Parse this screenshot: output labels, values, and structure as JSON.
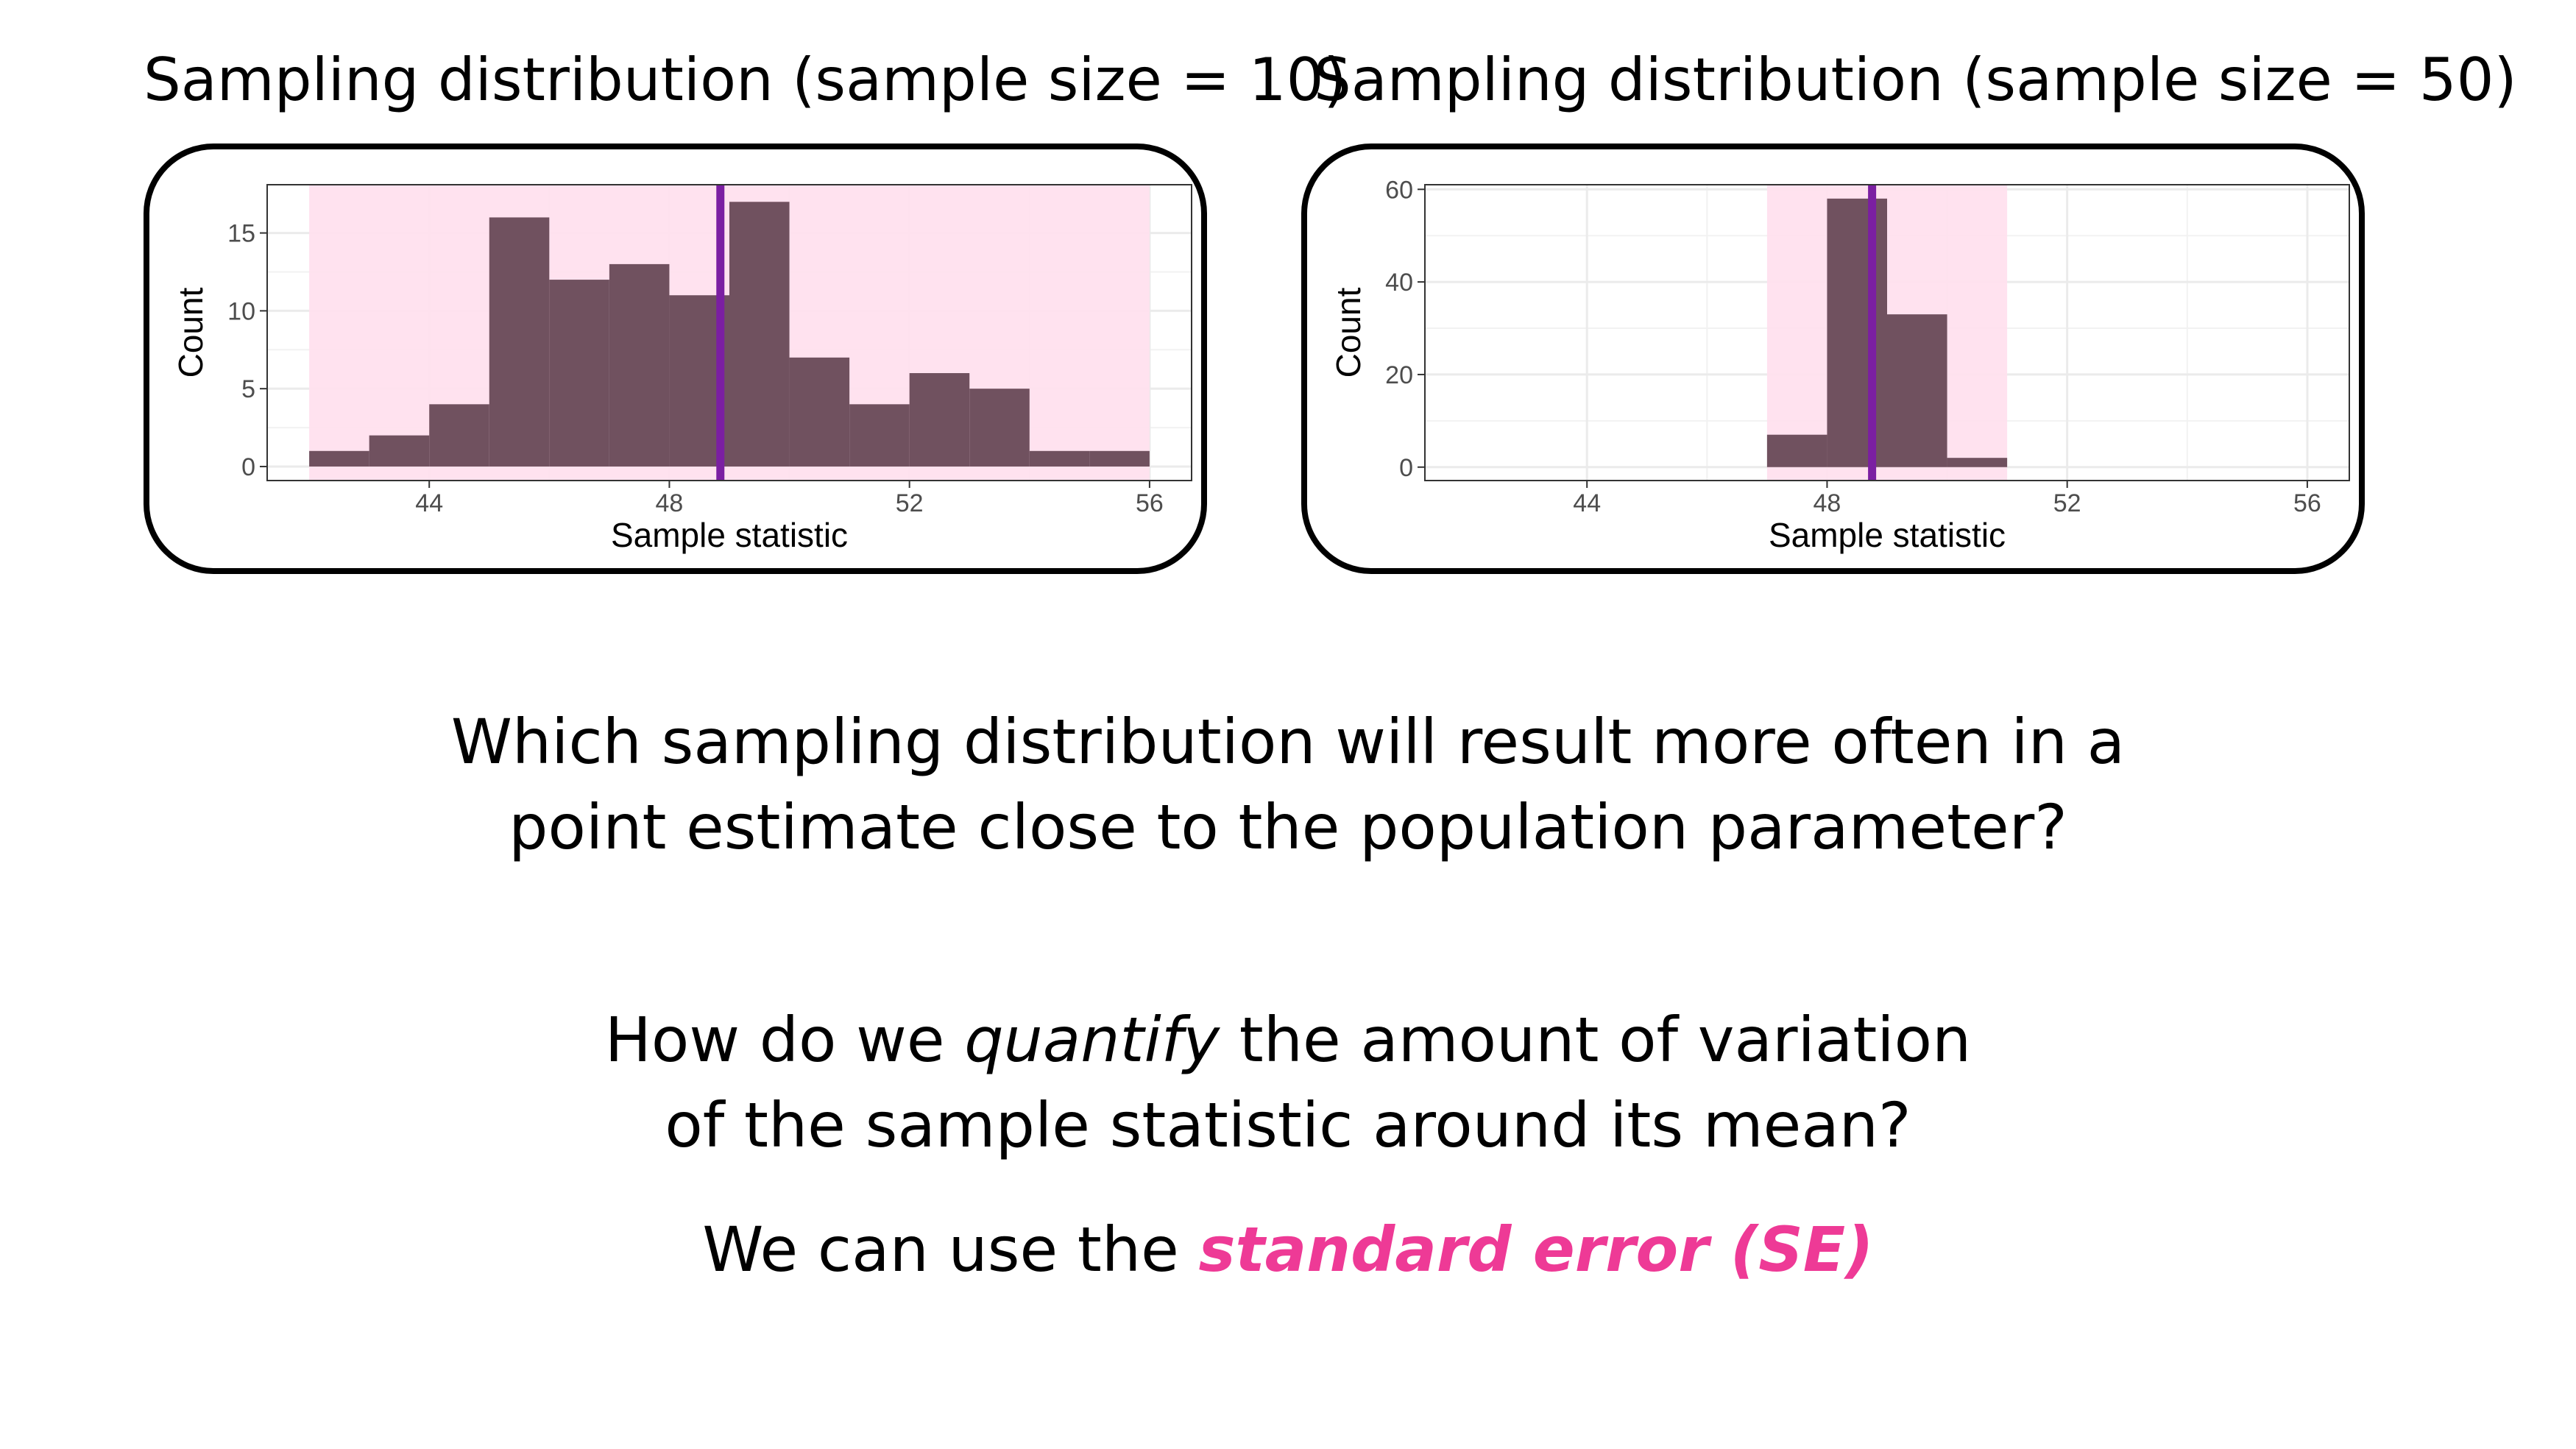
{
  "slide": {
    "question_line1": "Which sampling distribution will result more often in a",
    "question_line2": "point estimate close to the population parameter?",
    "q2_part1": "How do we ",
    "q2_emph": "quantify",
    "q2_part2": " the amount of variation",
    "q2_line2": "of the sample statistic around its mean?",
    "answer_prefix": "We can use the ",
    "answer_emph": "standard error (SE)"
  },
  "colors": {
    "bar_fill": "#70515f",
    "shade_fill": "#ffe0ee",
    "mean_line": "#7b1fa2",
    "highlight_text": "#ee3a96"
  },
  "chart_data": [
    {
      "type": "bar",
      "title": "Sampling distribution (sample size = 10)",
      "xlabel": "Sample statistic",
      "ylabel": "Count",
      "xlim": [
        41.3,
        56.7
      ],
      "ylim": [
        -0.9,
        18.1
      ],
      "xticks": [
        44,
        48,
        52,
        56
      ],
      "yticks": [
        0,
        5,
        10,
        15
      ],
      "bin_edges": [
        42,
        43,
        44,
        45,
        46,
        47,
        48,
        49,
        50,
        51,
        52,
        53,
        54,
        55,
        56
      ],
      "counts": [
        1,
        2,
        4,
        16,
        12,
        13,
        11,
        17,
        7,
        4,
        6,
        5,
        1,
        1
      ],
      "shaded_range": [
        42,
        56
      ],
      "mean_line": 48.85,
      "grid": true
    },
    {
      "type": "bar",
      "title": "Sampling distribution (sample size = 50)",
      "xlabel": "Sample statistic",
      "ylabel": "Count",
      "xlim": [
        41.3,
        56.7
      ],
      "ylim": [
        -2.9,
        61
      ],
      "xticks": [
        44,
        48,
        52,
        56
      ],
      "yticks": [
        0,
        20,
        40,
        60
      ],
      "bin_edges": [
        47,
        48,
        49,
        50,
        51
      ],
      "counts": [
        7,
        58,
        33,
        2
      ],
      "shaded_range": [
        47,
        51
      ],
      "mean_line": 48.75,
      "grid": true
    }
  ]
}
